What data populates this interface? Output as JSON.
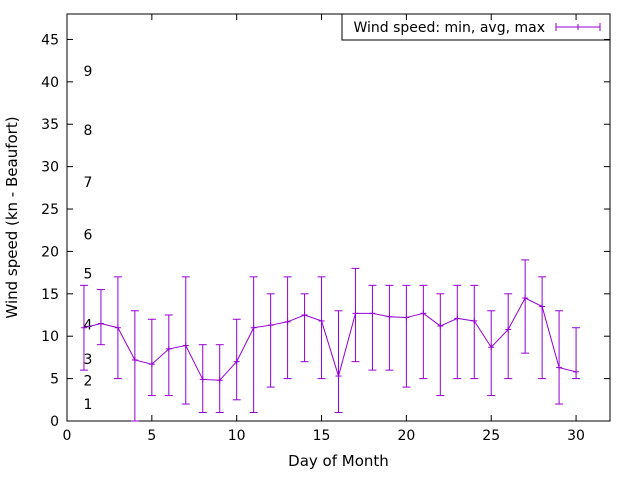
{
  "figure": {
    "background": "#ffffff",
    "border_color": "#000000"
  },
  "chart_data": {
    "type": "line",
    "style": "yerrorlines",
    "legend_label": "Wind speed: min, avg, max",
    "legend_position": "top-right",
    "xlabel": "Day of Month",
    "ylabel": "Wind speed (kn - Beaufort)",
    "series_color": "#9400d3",
    "grid": false,
    "xlim": [
      0,
      32
    ],
    "ylim": [
      0,
      48
    ],
    "xticks": [
      0,
      5,
      10,
      15,
      20,
      25,
      30
    ],
    "yticks": [
      0,
      5,
      10,
      15,
      20,
      25,
      30,
      35,
      40,
      45
    ],
    "beaufort_labels": [
      {
        "label": "1",
        "kn": 2.0
      },
      {
        "label": "2",
        "kn": 4.8
      },
      {
        "label": "3",
        "kn": 7.3
      },
      {
        "label": "4",
        "kn": 11.4
      },
      {
        "label": "5",
        "kn": 17.4
      },
      {
        "label": "6",
        "kn": 22.0
      },
      {
        "label": "7",
        "kn": 28.2
      },
      {
        "label": "8",
        "kn": 34.3
      },
      {
        "label": "9",
        "kn": 41.3
      }
    ],
    "x": [
      1,
      2,
      3,
      4,
      5,
      6,
      7,
      8,
      9,
      10,
      11,
      12,
      13,
      14,
      15,
      16,
      17,
      18,
      19,
      20,
      21,
      22,
      23,
      24,
      25,
      26,
      27,
      28,
      29,
      30
    ],
    "series": [
      {
        "name": "min",
        "values": [
          6,
          9,
          5,
          0,
          3,
          3,
          2,
          1,
          1,
          2.5,
          1,
          4,
          5,
          7,
          5,
          1,
          7,
          6,
          6,
          4,
          5,
          3,
          5,
          5,
          3,
          5,
          8,
          5,
          2,
          5
        ]
      },
      {
        "name": "avg",
        "values": [
          11,
          11.5,
          11,
          7.2,
          6.7,
          8.5,
          8.9,
          4.9,
          4.8,
          7,
          11,
          11.3,
          11.7,
          12.5,
          11.8,
          5.3,
          12.7,
          12.7,
          12.3,
          12.2,
          12.7,
          11.2,
          12.1,
          11.8,
          8.7,
          10.8,
          14.5,
          13.5,
          6.3,
          5.8
        ]
      },
      {
        "name": "max",
        "values": [
          16,
          15.5,
          17,
          13,
          12,
          12.5,
          17,
          9,
          9,
          12,
          17,
          15,
          17,
          15,
          17,
          13,
          18,
          16,
          16,
          16,
          16,
          15,
          16,
          16,
          13,
          15,
          19,
          17,
          13,
          11
        ]
      }
    ]
  }
}
